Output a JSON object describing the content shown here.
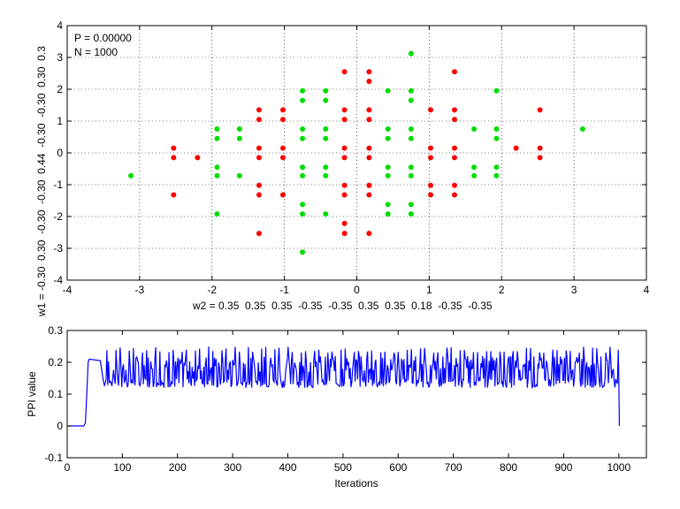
{
  "chart_data": [
    {
      "type": "scatter",
      "annotation": [
        "P = 0.00000",
        "N = 1000"
      ],
      "xlabel": "w2 = 0.35  0.35  0.35  -0.35  -0.35  0.35  0.35  0.18  -0.35  -0.35",
      "ylabel": "w1 = -0.30  0.30  -0.30  -0.30  0.44  -0.30  -0.30  0.30  0.3",
      "xlim": [
        -4,
        4
      ],
      "ylim": [
        -4,
        4
      ],
      "xticks": [
        "-4",
        "-3",
        "-2",
        "-1",
        "0",
        "1",
        "2",
        "3",
        "4"
      ],
      "yticks": [
        "4",
        "3",
        "2",
        "1",
        "0",
        "-1",
        "-2",
        "-3",
        "-4"
      ],
      "grid": true,
      "series": [
        {
          "color": "#ff0000",
          "points": [
            [
              -2.53,
              0.15
            ],
            [
              -2.53,
              -0.15
            ],
            [
              -2.2,
              -0.15
            ],
            [
              -2.53,
              -1.32
            ],
            [
              -1.35,
              1.35
            ],
            [
              -1.35,
              1.05
            ],
            [
              -1.35,
              0.15
            ],
            [
              -1.35,
              -0.15
            ],
            [
              -1.35,
              -1.02
            ],
            [
              -1.35,
              -1.32
            ],
            [
              -1.35,
              -2.53
            ],
            [
              -1.02,
              1.35
            ],
            [
              -1.02,
              1.05
            ],
            [
              -1.02,
              0.15
            ],
            [
              -1.02,
              -0.15
            ],
            [
              -1.02,
              -1.32
            ],
            [
              -0.17,
              2.55
            ],
            [
              -0.17,
              1.35
            ],
            [
              -0.17,
              1.05
            ],
            [
              -0.17,
              0.15
            ],
            [
              -0.17,
              -0.15
            ],
            [
              -0.17,
              -1.02
            ],
            [
              -0.17,
              -1.32
            ],
            [
              -0.17,
              -2.22
            ],
            [
              -0.17,
              -2.53
            ],
            [
              0.17,
              2.55
            ],
            [
              0.17,
              2.25
            ],
            [
              0.17,
              1.35
            ],
            [
              0.17,
              1.05
            ],
            [
              0.17,
              0.15
            ],
            [
              0.17,
              -0.15
            ],
            [
              0.17,
              -1.02
            ],
            [
              0.17,
              -1.32
            ],
            [
              0.17,
              -2.53
            ],
            [
              1.02,
              1.35
            ],
            [
              1.02,
              0.15
            ],
            [
              1.02,
              -0.15
            ],
            [
              1.02,
              -1.02
            ],
            [
              1.02,
              -1.32
            ],
            [
              1.35,
              2.55
            ],
            [
              1.35,
              1.35
            ],
            [
              1.35,
              1.05
            ],
            [
              1.35,
              0.15
            ],
            [
              1.35,
              -0.15
            ],
            [
              1.35,
              -1.02
            ],
            [
              1.35,
              -1.32
            ],
            [
              2.2,
              0.15
            ],
            [
              2.53,
              1.35
            ],
            [
              2.53,
              0.15
            ],
            [
              2.53,
              -0.15
            ]
          ]
        },
        {
          "color": "#00dd00",
          "points": [
            [
              -3.12,
              -0.72
            ],
            [
              -1.93,
              0.75
            ],
            [
              -1.93,
              0.45
            ],
            [
              -1.93,
              -0.45
            ],
            [
              -1.93,
              -0.72
            ],
            [
              -1.93,
              -1.92
            ],
            [
              -1.62,
              0.75
            ],
            [
              -1.62,
              0.45
            ],
            [
              -1.62,
              -0.72
            ],
            [
              -0.75,
              1.95
            ],
            [
              -0.75,
              1.65
            ],
            [
              -0.75,
              0.75
            ],
            [
              -0.75,
              0.45
            ],
            [
              -0.75,
              -0.45
            ],
            [
              -0.75,
              -0.72
            ],
            [
              -0.75,
              -1.62
            ],
            [
              -0.75,
              -1.92
            ],
            [
              -0.75,
              -3.12
            ],
            [
              -0.43,
              1.95
            ],
            [
              -0.43,
              1.65
            ],
            [
              -0.43,
              0.75
            ],
            [
              -0.43,
              0.45
            ],
            [
              -0.43,
              -0.45
            ],
            [
              -0.43,
              -0.72
            ],
            [
              -0.43,
              -1.92
            ],
            [
              0.43,
              1.95
            ],
            [
              0.43,
              0.75
            ],
            [
              0.43,
              0.45
            ],
            [
              0.43,
              -0.45
            ],
            [
              0.43,
              -0.72
            ],
            [
              0.43,
              -1.62
            ],
            [
              0.43,
              -1.92
            ],
            [
              0.75,
              3.12
            ],
            [
              0.75,
              1.95
            ],
            [
              0.75,
              1.65
            ],
            [
              0.75,
              0.75
            ],
            [
              0.75,
              0.45
            ],
            [
              0.75,
              -0.45
            ],
            [
              0.75,
              -0.72
            ],
            [
              0.75,
              -1.62
            ],
            [
              0.75,
              -1.92
            ],
            [
              1.62,
              0.75
            ],
            [
              1.62,
              -0.45
            ],
            [
              1.62,
              -0.72
            ],
            [
              1.93,
              1.95
            ],
            [
              1.93,
              0.75
            ],
            [
              1.93,
              0.45
            ],
            [
              1.93,
              -0.45
            ],
            [
              1.93,
              -0.72
            ],
            [
              3.12,
              0.75
            ]
          ]
        }
      ]
    },
    {
      "type": "line",
      "xlabel": "Iterations",
      "ylabel": "PPI value",
      "xlim": [
        0,
        1050
      ],
      "ylim": [
        -0.1,
        0.3
      ],
      "xticks": [
        "0",
        "100",
        "200",
        "300",
        "400",
        "500",
        "600",
        "700",
        "800",
        "900",
        "1000"
      ],
      "yticks": [
        "0.3",
        "0.2",
        "0.1",
        "0",
        "-0.1"
      ],
      "grid": false,
      "series": [
        {
          "color": "#0000ff",
          "description_points": [
            [
              0,
              0.0
            ],
            [
              30,
              0.0
            ],
            [
              33,
              0.01
            ],
            [
              36,
              0.12
            ],
            [
              38,
              0.2
            ],
            [
              40,
              0.21
            ],
            [
              60,
              0.205
            ],
            [
              65,
              0.18
            ],
            [
              70,
              0.15
            ],
            [
              1000,
              0.15
            ],
            [
              1001,
              0.0
            ]
          ],
          "band_low": 0.12,
          "band_high": 0.25
        }
      ]
    }
  ]
}
